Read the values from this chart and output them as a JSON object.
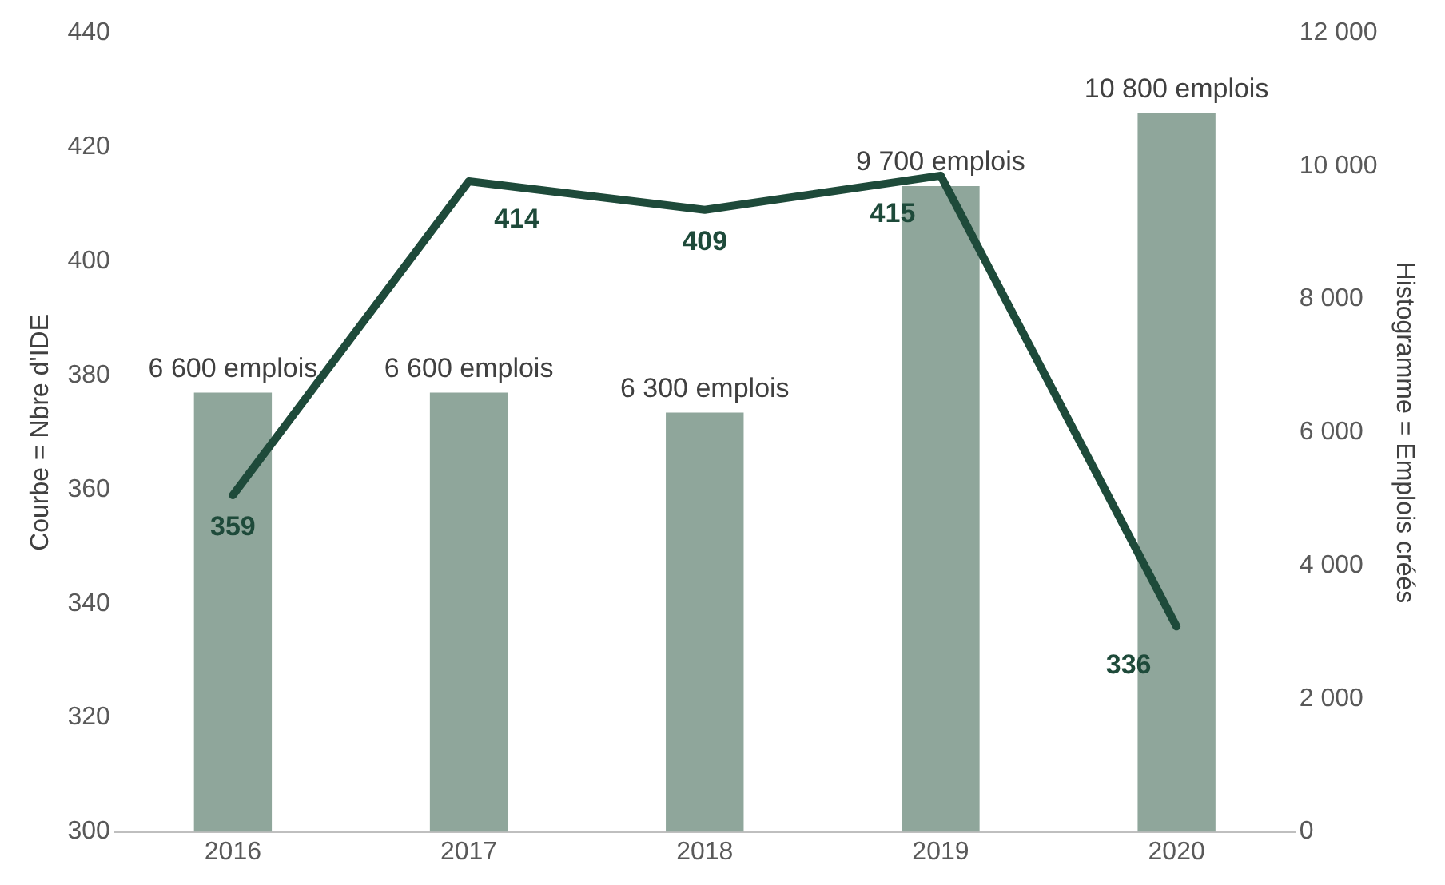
{
  "chart_data": {
    "type": "bar",
    "categories": [
      "2016",
      "2017",
      "2018",
      "2019",
      "2020"
    ],
    "ylabel": "Courbe = Nbre d'IDE",
    "y2label": "Histogramme = Emplois créés",
    "ylim": [
      300,
      440
    ],
    "yticks": [
      300,
      320,
      340,
      360,
      380,
      400,
      420,
      440
    ],
    "y2lim": [
      0,
      12000
    ],
    "y2ticks": [
      {
        "value": 0,
        "label": "0"
      },
      {
        "value": 2000,
        "label": "2 000"
      },
      {
        "value": 4000,
        "label": "4 000"
      },
      {
        "value": 6000,
        "label": "6 000"
      },
      {
        "value": 8000,
        "label": "8 000"
      },
      {
        "value": 10000,
        "label": "10 000"
      },
      {
        "value": 12000,
        "label": "12 000"
      }
    ],
    "grid": false,
    "legend": false,
    "series": [
      {
        "axis": "y2",
        "color": "#8fa69b",
        "values": [
          6600,
          6600,
          6300,
          9700,
          10800
        ],
        "value_labels": [
          "6 600 emplois",
          "6 600 emplois",
          "6 300 emplois",
          "9 700 emplois",
          "10 800 emplois"
        ]
      },
      {
        "type": "line",
        "color": "#1e4a3a",
        "values": [
          359,
          414,
          409,
          415,
          336
        ],
        "data_labels": true,
        "marker": "none"
      }
    ]
  }
}
